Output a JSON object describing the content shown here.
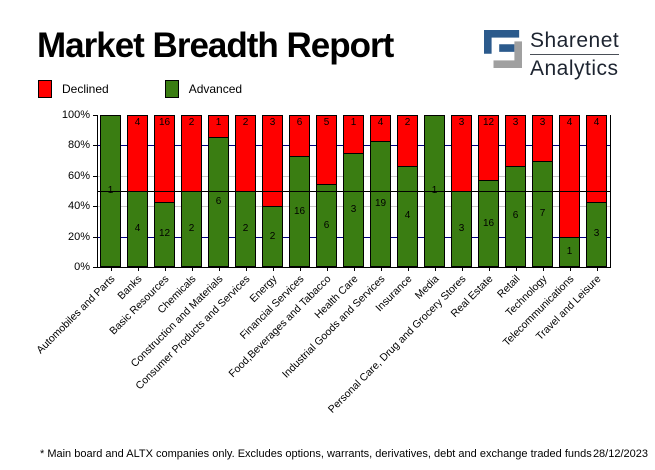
{
  "header": {
    "title": "Market Breadth Report",
    "brand": {
      "line1": "Sharenet",
      "line2": "Analytics",
      "glyph_navy": "#2B5A8C",
      "glyph_gray": "#A0A0A0"
    }
  },
  "legend": [
    {
      "label": "Declined",
      "color": "#FF0000"
    },
    {
      "label": "Advanced",
      "color": "#3A7D12"
    }
  ],
  "chart_data": {
    "type": "bar",
    "stacked": true,
    "title": "Market Breadth Report",
    "unit": "percent of companies (advanced vs declined share count shown as labels)",
    "ylim": [
      0,
      100
    ],
    "yticks": [
      {
        "value": 100,
        "label": "100%"
      },
      {
        "value": 80,
        "label": "80%"
      },
      {
        "value": 60,
        "label": "60%"
      },
      {
        "value": 40,
        "label": "40%"
      },
      {
        "value": 20,
        "label": "20%"
      },
      {
        "value": 0,
        "label": "0%"
      }
    ],
    "gridlines": [
      {
        "value": 80,
        "color": "#000080",
        "layer": "back"
      },
      {
        "value": 60,
        "color": "#C8C8C8",
        "layer": "back"
      },
      {
        "value": 50,
        "color": "#000000",
        "layer": "front"
      },
      {
        "value": 40,
        "color": "#C8C8C8",
        "layer": "back"
      },
      {
        "value": 20,
        "color": "#000080",
        "layer": "back"
      }
    ],
    "categories": [
      "Automobiles and Parts",
      "Banks",
      "Basic Resources",
      "Chemicals",
      "Construction and Materials",
      "Consumer Products and Services",
      "Energy",
      "Financial Services",
      "Food,Beverages and Tabacco",
      "Health Care",
      "Industrial Goods and Services",
      "Insurance",
      "Media",
      "Personal Care, Drug and Grocery Stores",
      "Real Estate",
      "Retail",
      "Technology",
      "Telecommunications",
      "Travel and Leisure"
    ],
    "series": [
      {
        "name": "Declined",
        "color": "#FF0000",
        "values": [
          0,
          4,
          16,
          2,
          1,
          2,
          3,
          6,
          5,
          1,
          4,
          2,
          0,
          3,
          12,
          3,
          3,
          4,
          4
        ]
      },
      {
        "name": "Advanced",
        "color": "#3A7D12",
        "values": [
          1,
          4,
          12,
          2,
          6,
          2,
          2,
          16,
          6,
          3,
          19,
          4,
          1,
          3,
          16,
          6,
          7,
          1,
          3
        ]
      }
    ],
    "legend_position": "top-left",
    "grid": true
  },
  "footer": {
    "note": "* Main board and ALTX companies only. Excludes options, warrants, derivatives, debt and exchange traded funds",
    "date": "28/12/2023"
  }
}
